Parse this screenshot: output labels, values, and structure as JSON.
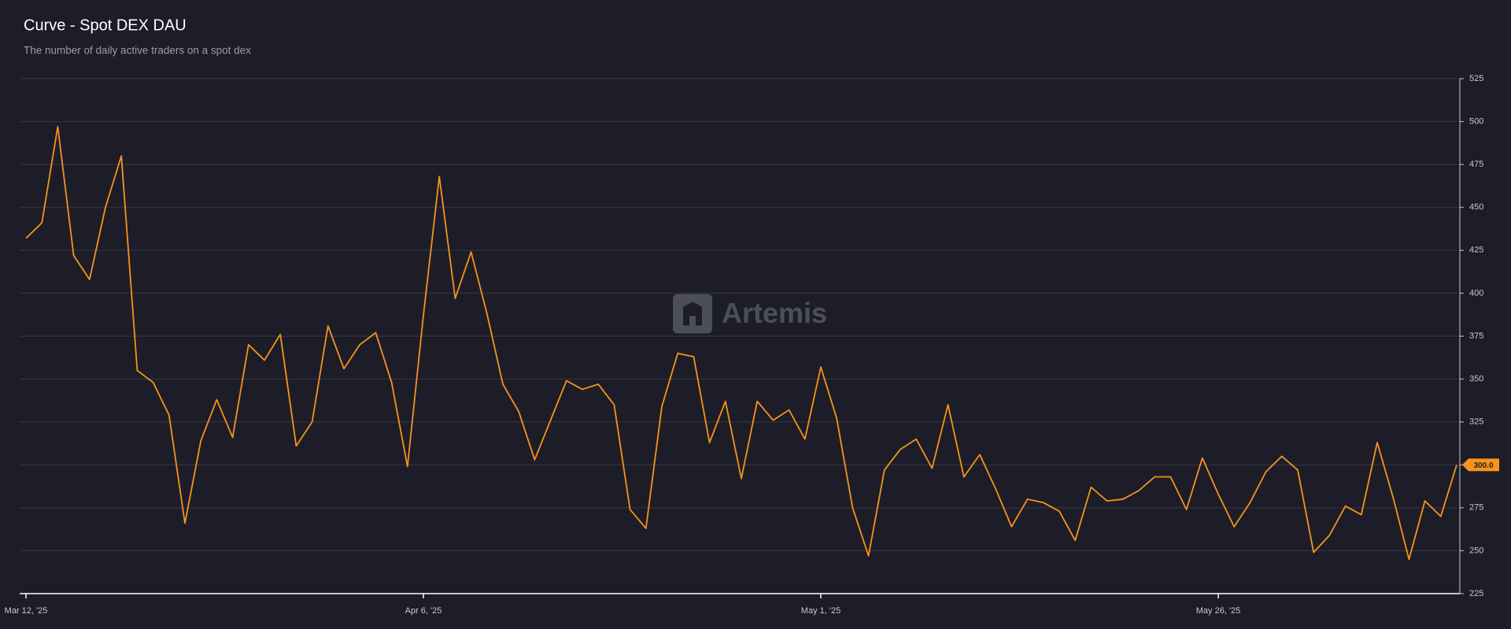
{
  "chart_data": {
    "type": "line",
    "title": "Curve - Spot DEX DAU",
    "subtitle": "The number of daily active traders on a spot dex",
    "watermark": "Artemis",
    "x": [
      "2025-03-12",
      "2025-03-13",
      "2025-03-14",
      "2025-03-15",
      "2025-03-16",
      "2025-03-17",
      "2025-03-18",
      "2025-03-19",
      "2025-03-20",
      "2025-03-21",
      "2025-03-22",
      "2025-03-23",
      "2025-03-24",
      "2025-03-25",
      "2025-03-26",
      "2025-03-27",
      "2025-03-28",
      "2025-03-29",
      "2025-03-30",
      "2025-03-31",
      "2025-04-01",
      "2025-04-02",
      "2025-04-03",
      "2025-04-04",
      "2025-04-05",
      "2025-04-06",
      "2025-04-07",
      "2025-04-08",
      "2025-04-09",
      "2025-04-10",
      "2025-04-11",
      "2025-04-12",
      "2025-04-13",
      "2025-04-14",
      "2025-04-15",
      "2025-04-16",
      "2025-04-17",
      "2025-04-18",
      "2025-04-19",
      "2025-04-20",
      "2025-04-21",
      "2025-04-22",
      "2025-04-23",
      "2025-04-24",
      "2025-04-25",
      "2025-04-26",
      "2025-04-27",
      "2025-04-28",
      "2025-04-29",
      "2025-04-30",
      "2025-05-01",
      "2025-05-02",
      "2025-05-03",
      "2025-05-04",
      "2025-05-05",
      "2025-05-06",
      "2025-05-07",
      "2025-05-08",
      "2025-05-09",
      "2025-05-10",
      "2025-05-11",
      "2025-05-12",
      "2025-05-13",
      "2025-05-14",
      "2025-05-15",
      "2025-05-16",
      "2025-05-17",
      "2025-05-18",
      "2025-05-19",
      "2025-05-20",
      "2025-05-21",
      "2025-05-22",
      "2025-05-23",
      "2025-05-24",
      "2025-05-25",
      "2025-05-26",
      "2025-05-27",
      "2025-05-28",
      "2025-05-29",
      "2025-05-30",
      "2025-05-31",
      "2025-06-01",
      "2025-06-02",
      "2025-06-03",
      "2025-06-04",
      "2025-06-05",
      "2025-06-06",
      "2025-06-07",
      "2025-06-08",
      "2025-06-09",
      "2025-06-10"
    ],
    "series": [
      {
        "name": "Spot DEX DAU",
        "color": "#f7931a",
        "values": [
          432,
          441,
          497,
          422,
          408,
          450,
          480,
          355,
          348,
          329,
          266,
          314,
          338,
          316,
          370,
          361,
          376,
          311,
          325,
          381,
          356,
          370,
          377,
          348,
          299,
          387,
          468,
          397,
          424,
          388,
          347,
          331,
          303,
          326,
          349,
          344,
          347,
          335,
          274,
          263,
          334,
          365,
          363,
          313,
          337,
          292,
          337,
          326,
          332,
          315,
          357,
          327,
          275,
          247,
          297,
          309,
          315,
          298,
          335,
          293,
          306,
          286,
          264,
          280,
          278,
          273,
          256,
          287,
          279,
          280,
          285,
          293,
          293,
          274,
          304,
          283,
          264,
          278,
          296,
          305,
          297,
          249,
          259,
          276,
          271,
          313,
          281,
          245,
          279,
          270,
          300
        ],
        "value_labels": [
          null,
          null,
          null,
          null,
          null,
          null,
          null,
          null,
          null,
          null,
          null,
          null,
          null,
          null,
          null,
          null,
          null,
          null,
          null,
          null,
          null,
          null,
          null,
          null,
          null,
          null,
          null,
          null,
          null,
          null,
          null,
          null,
          null,
          null,
          null,
          null,
          null,
          null,
          null,
          null,
          null,
          null,
          null,
          null,
          null,
          null,
          null,
          null,
          null,
          null,
          null,
          null,
          null,
          null,
          null,
          null,
          null,
          null,
          null,
          null,
          null,
          null,
          null,
          null,
          null,
          null,
          null,
          null,
          null,
          null,
          null,
          null,
          null,
          null,
          null,
          null,
          null,
          null,
          null,
          null,
          null,
          null,
          null,
          null,
          null,
          null,
          null,
          null,
          null,
          null,
          "300.0"
        ]
      }
    ],
    "xlim": [
      "2025-03-12",
      "2025-06-10"
    ],
    "xticks": [
      {
        "value": "2025-03-12",
        "label": "Mar 12, '25"
      },
      {
        "value": "2025-04-06",
        "label": "Apr 6, '25"
      },
      {
        "value": "2025-05-01",
        "label": "May 1, '25"
      },
      {
        "value": "2025-05-26",
        "label": "May 26, '25"
      }
    ],
    "ylim": [
      225,
      525
    ],
    "yticks": [
      225,
      250,
      275,
      300,
      325,
      350,
      375,
      400,
      425,
      450,
      475,
      500,
      525
    ],
    "grid": true
  }
}
